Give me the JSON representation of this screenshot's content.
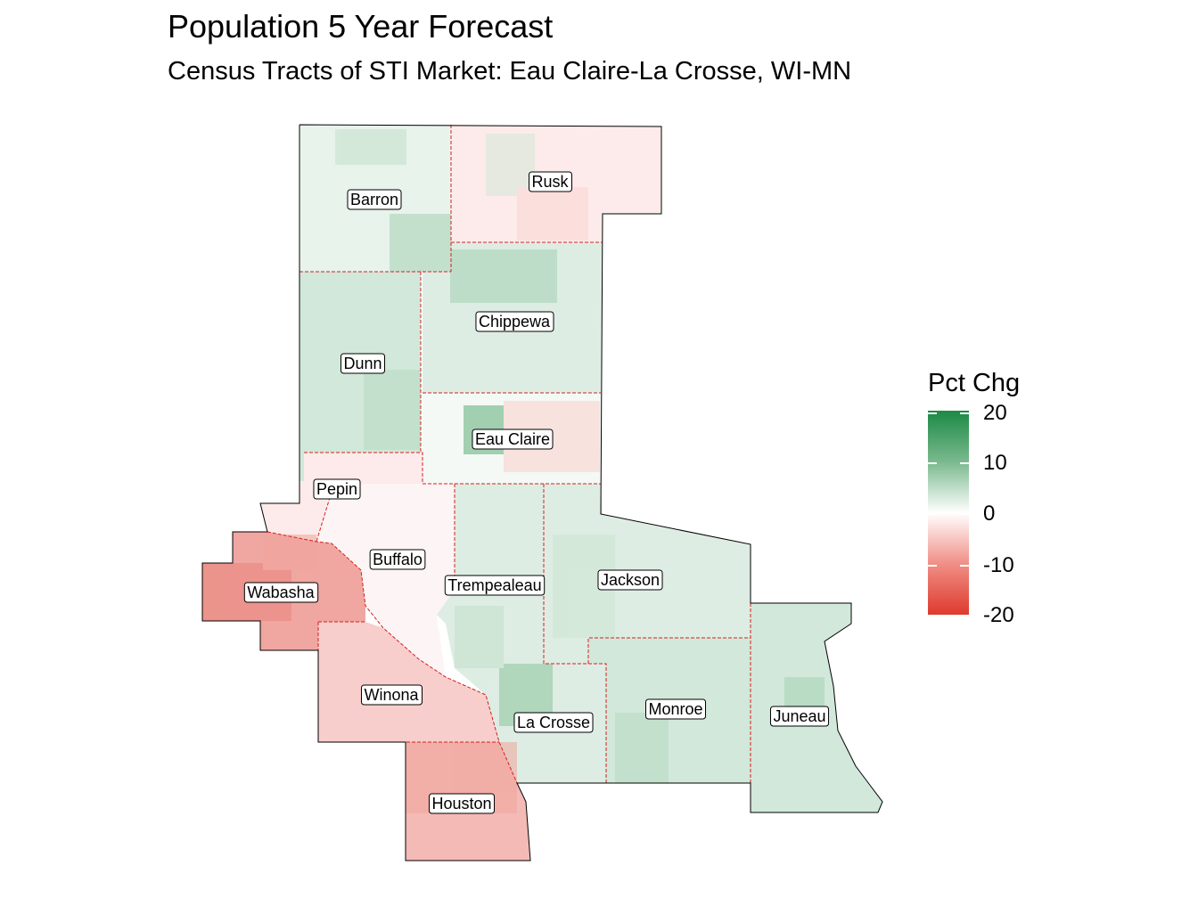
{
  "title": "Population 5 Year Forecast",
  "subtitle": "Census Tracts of STI Market: Eau Claire-La Crosse, WI-MN",
  "legend": {
    "title": "Pct Chg",
    "ticks": [
      "20",
      "10",
      "0",
      "-10",
      "-20"
    ],
    "scale_min": -20,
    "scale_max": 20,
    "color_high": "#1b8a45",
    "color_mid": "#ffffff",
    "color_low": "#de3a2d"
  },
  "counties": [
    {
      "name": "Barron",
      "pct_chg": 2
    },
    {
      "name": "Rusk",
      "pct_chg": -2
    },
    {
      "name": "Chippewa",
      "pct_chg": 4
    },
    {
      "name": "Dunn",
      "pct_chg": 3
    },
    {
      "name": "Eau Claire",
      "pct_chg": 1
    },
    {
      "name": "Pepin",
      "pct_chg": -2
    },
    {
      "name": "Buffalo",
      "pct_chg": -1
    },
    {
      "name": "Trempealeau",
      "pct_chg": 3
    },
    {
      "name": "Jackson",
      "pct_chg": 3
    },
    {
      "name": "Wabasha",
      "pct_chg": -9
    },
    {
      "name": "Winona",
      "pct_chg": -5
    },
    {
      "name": "La Crosse",
      "pct_chg": 3
    },
    {
      "name": "Monroe",
      "pct_chg": 4
    },
    {
      "name": "Juneau",
      "pct_chg": 4
    },
    {
      "name": "Houston",
      "pct_chg": -7
    }
  ]
}
